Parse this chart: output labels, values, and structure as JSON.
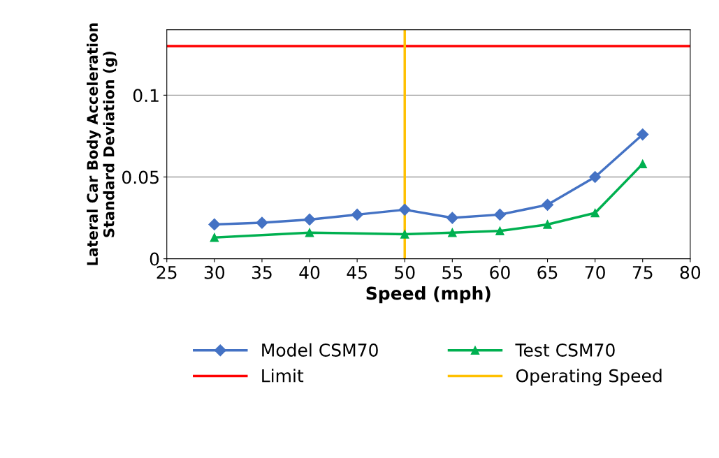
{
  "chart_data": {
    "type": "line",
    "xlabel": "Speed (mph)",
    "ylabel": "Lateral Car Body Acceleration\nStandard Deviation (g)",
    "series": [
      {
        "name": "Model CSM70",
        "color": "#4472c4",
        "marker": "diamond",
        "x": [
          30,
          35,
          40,
          45,
          50,
          55,
          60,
          65,
          70,
          75
        ],
        "values": [
          0.021,
          0.022,
          0.024,
          0.027,
          0.03,
          0.025,
          0.027,
          0.033,
          0.05,
          0.076
        ]
      },
      {
        "name": "Test CSM70",
        "color": "#00b050",
        "marker": "triangle",
        "x": [
          30,
          40,
          50,
          55,
          60,
          65,
          70,
          75
        ],
        "values": [
          0.013,
          0.016,
          0.015,
          0.016,
          0.017,
          0.021,
          0.028,
          0.058
        ]
      }
    ],
    "ref_lines": [
      {
        "axis": "y",
        "value": 0.13,
        "label": "Limit",
        "color": "#ff0000"
      },
      {
        "axis": "x",
        "value": 50,
        "label": "Operating Speed",
        "color": "#ffc000"
      }
    ],
    "xlim": [
      25,
      80
    ],
    "xticks": [
      25,
      30,
      35,
      40,
      45,
      50,
      55,
      60,
      65,
      70,
      75,
      80
    ],
    "ylim": [
      0,
      0.14
    ],
    "yticks": [
      0,
      0.05,
      0.1
    ],
    "grid": "y",
    "legend": "bottom",
    "line_style": "solid"
  }
}
